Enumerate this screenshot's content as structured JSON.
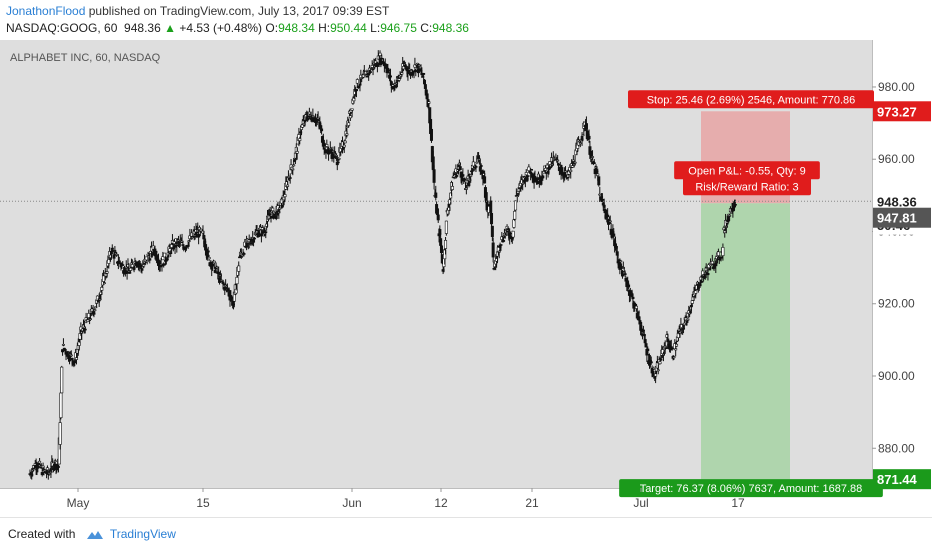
{
  "header": {
    "author": "JonathonFlood",
    "published_text": "published on TradingView.com, July 13, 2017 09:39 EST",
    "symbol": "NASDAQ:GOOG, 60",
    "last": "948.36",
    "change": "+4.53 (+0.48%)",
    "o_label": "O:",
    "o_value": "948.34",
    "h_label": "H:",
    "h_value": "950.44",
    "l_label": "L:",
    "l_value": "946.75",
    "c_label": "C:",
    "c_value": "948.36"
  },
  "footer": {
    "created_with": "Created with",
    "brand": "TradingView"
  },
  "chart_data": {
    "type": "candlestick",
    "title": "ALPHABET INC, 60, NASDAQ",
    "ylim": [
      869,
      993
    ],
    "y_ticks": [
      "980.00",
      "960.00",
      "940.00",
      "920.00",
      "900.00",
      "880.00"
    ],
    "x_ticks": [
      "May",
      "15",
      "Jun",
      "12",
      "21",
      "Jul",
      "17"
    ],
    "price_labels": {
      "stop": "973.27",
      "last": "948.36",
      "countdown": "50:46",
      "entry": "947.81",
      "target": "871.44"
    },
    "close_path": [
      [
        0.0,
        873
      ],
      [
        1.5,
        876
      ],
      [
        3.0,
        874
      ],
      [
        4.5,
        873
      ],
      [
        6.0,
        876
      ],
      [
        7.0,
        875
      ],
      [
        8.0,
        908
      ],
      [
        9.5,
        906
      ],
      [
        11.0,
        904
      ],
      [
        12.5,
        912
      ],
      [
        14.0,
        915
      ],
      [
        15.5,
        918
      ],
      [
        17.0,
        922
      ],
      [
        18.5,
        928
      ],
      [
        20.0,
        935
      ],
      [
        21.5,
        932
      ],
      [
        23.0,
        930
      ],
      [
        24.5,
        929
      ],
      [
        26.0,
        932
      ],
      [
        27.5,
        930
      ],
      [
        29.0,
        933
      ],
      [
        30.5,
        935
      ],
      [
        32.0,
        931
      ],
      [
        33.5,
        933
      ],
      [
        35.0,
        936
      ],
      [
        36.5,
        937
      ],
      [
        38.0,
        936
      ],
      [
        39.5,
        938
      ],
      [
        41.0,
        940
      ],
      [
        42.5,
        939
      ],
      [
        44.0,
        932
      ],
      [
        45.5,
        930
      ],
      [
        47.0,
        926
      ],
      [
        48.5,
        924
      ],
      [
        50.0,
        920
      ],
      [
        51.5,
        933
      ],
      [
        53.0,
        936
      ],
      [
        54.5,
        938
      ],
      [
        56.0,
        940
      ],
      [
        57.5,
        940
      ],
      [
        59.0,
        945
      ],
      [
        60.5,
        945
      ],
      [
        62.0,
        948
      ],
      [
        63.5,
        955
      ],
      [
        65.0,
        960
      ],
      [
        66.5,
        968
      ],
      [
        68.0,
        972
      ],
      [
        69.5,
        972
      ],
      [
        71.0,
        970
      ],
      [
        72.5,
        963
      ],
      [
        74.0,
        962
      ],
      [
        75.5,
        960
      ],
      [
        77.0,
        964
      ],
      [
        78.5,
        972
      ],
      [
        80.0,
        980
      ],
      [
        81.5,
        982
      ],
      [
        83.0,
        984
      ],
      [
        84.5,
        986
      ],
      [
        86.0,
        988
      ],
      [
        87.5,
        986
      ],
      [
        89.0,
        980
      ],
      [
        90.5,
        982
      ],
      [
        92.0,
        986
      ],
      [
        93.5,
        984
      ],
      [
        95.0,
        986
      ],
      [
        96.5,
        983
      ],
      [
        98.0,
        975
      ],
      [
        99.5,
        950
      ],
      [
        100.5,
        940
      ],
      [
        101.5,
        930
      ],
      [
        102.5,
        945
      ],
      [
        104.0,
        955
      ],
      [
        105.5,
        958
      ],
      [
        107.0,
        952
      ],
      [
        108.5,
        957
      ],
      [
        110.0,
        960
      ],
      [
        111.5,
        955
      ],
      [
        112.5,
        945
      ],
      [
        113.0,
        948
      ],
      [
        114.0,
        930
      ],
      [
        115.5,
        937
      ],
      [
        117.0,
        940
      ],
      [
        118.5,
        939
      ],
      [
        119.5,
        950
      ],
      [
        121.5,
        955
      ],
      [
        123.0,
        957
      ],
      [
        124.5,
        954
      ],
      [
        126.0,
        956
      ],
      [
        127.5,
        958
      ],
      [
        129.0,
        960
      ],
      [
        130.5,
        957
      ],
      [
        132.0,
        955
      ],
      [
        133.5,
        959
      ],
      [
        135.0,
        965
      ],
      [
        136.5,
        970
      ],
      [
        138.0,
        960
      ],
      [
        139.5,
        955
      ],
      [
        140.0,
        950
      ],
      [
        141.5,
        945
      ],
      [
        143.0,
        940
      ],
      [
        144.5,
        932
      ],
      [
        146.0,
        928
      ],
      [
        147.5,
        923
      ],
      [
        149.0,
        918
      ],
      [
        150.5,
        912
      ],
      [
        152.0,
        905
      ],
      [
        153.5,
        900
      ],
      [
        155.0,
        905
      ],
      [
        156.5,
        910
      ],
      [
        158.0,
        906
      ],
      [
        159.5,
        912
      ],
      [
        161.0,
        915
      ],
      [
        162.5,
        920
      ],
      [
        164.0,
        925
      ],
      [
        165.5,
        928
      ],
      [
        167.0,
        930
      ],
      [
        168.5,
        932
      ],
      [
        170.0,
        934
      ],
      [
        170.5,
        940
      ],
      [
        171.5,
        944
      ],
      [
        172.5,
        947
      ],
      [
        173.5,
        948.36
      ]
    ],
    "position": {
      "side": "short",
      "stop_text": "Stop: 25.46 (2.69%) 2546, Amount: 770.86",
      "pnl_text": "Open P&L: -0.55, Qty: 9",
      "rr_text": "Risk/Reward Ratio: 3",
      "target_text": "Target: 76.37 (8.06%) 7637, Amount: 1687.88",
      "entry": 947.81,
      "stop": 973.27,
      "target": 871.44
    }
  }
}
